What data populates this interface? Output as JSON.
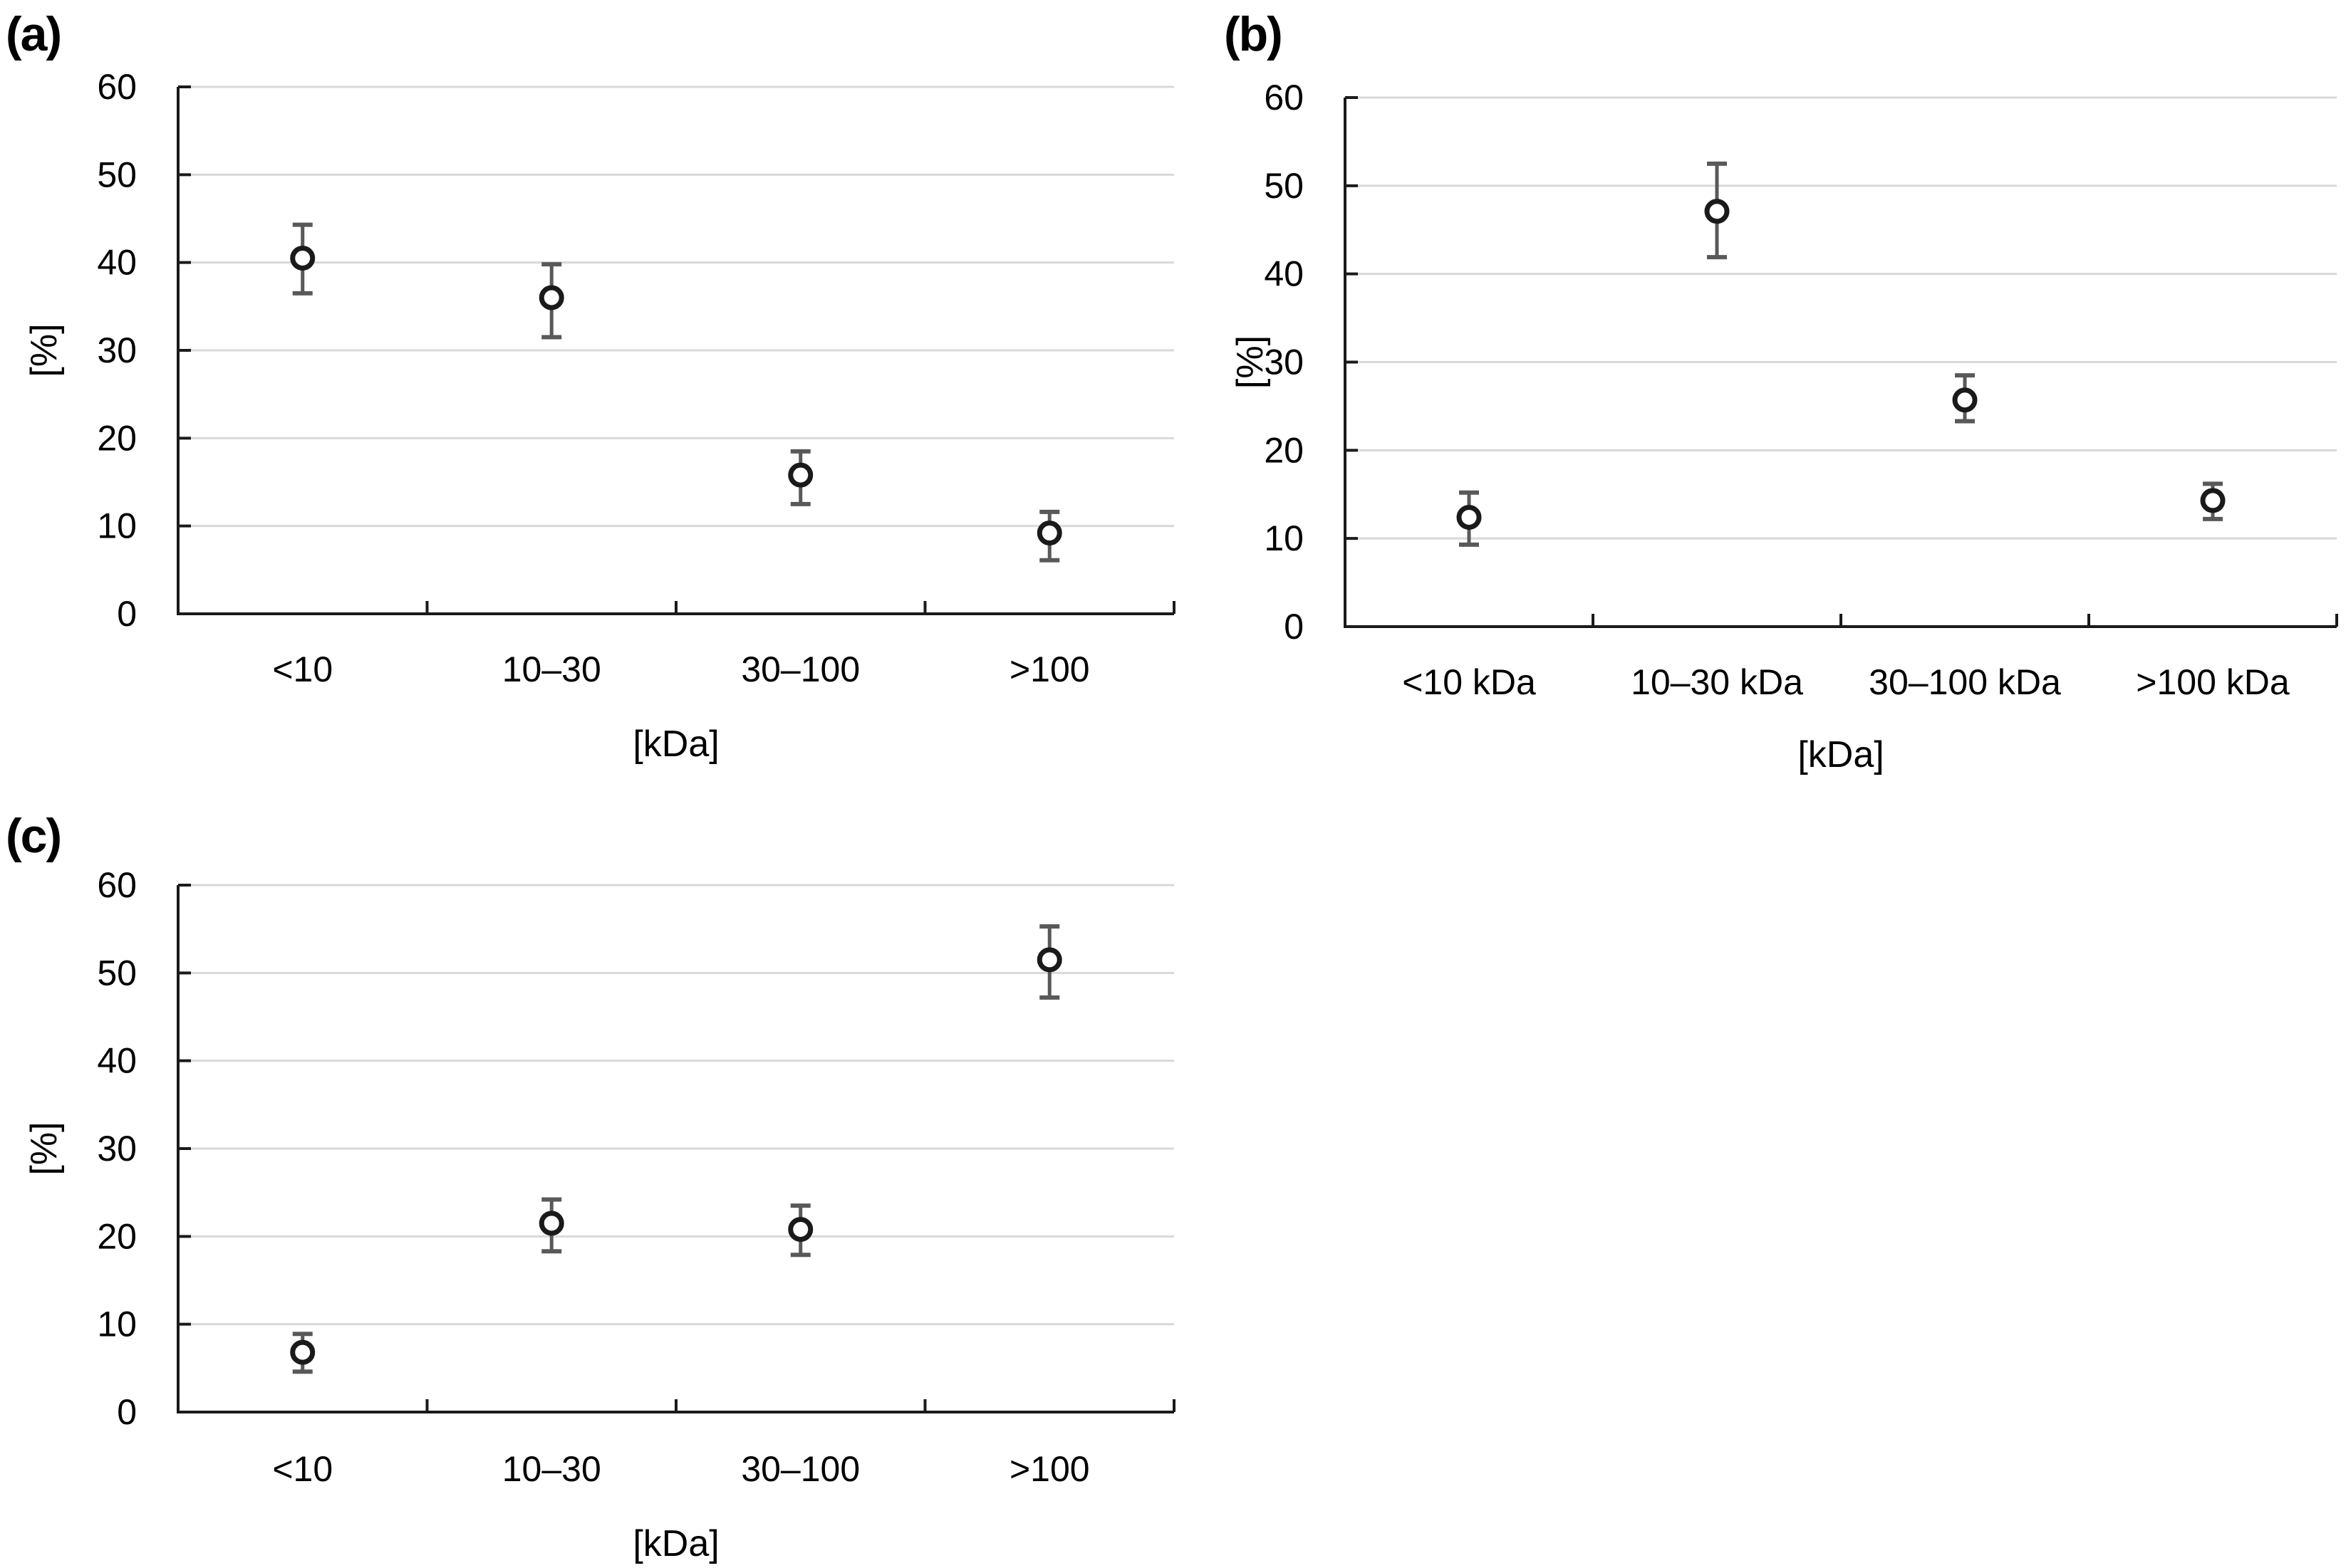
{
  "figure": {
    "background": "#ffffff",
    "panel_labels": [
      "(a)",
      "(b)",
      "(c)"
    ]
  },
  "colors": {
    "marker_stroke": "#1a1a1a",
    "marker_fill": "#ffffff",
    "error_bar": "#595959",
    "gridline": "#d9d9d9",
    "axis": "#1a1a1a",
    "text": "#000000"
  },
  "chart_data": [
    {
      "id": "a",
      "panel_label": "(a)",
      "type": "scatter",
      "marker": "open-circle",
      "categories": [
        "<10",
        "10–30",
        "30–100",
        ">100"
      ],
      "values": [
        40.5,
        36.0,
        15.8,
        9.2
      ],
      "error_up": [
        3.8,
        3.8,
        2.7,
        2.4
      ],
      "error_down": [
        4.0,
        4.5,
        3.3,
        3.1
      ],
      "xlabel": "[kDa]",
      "ylabel": "[%]",
      "ylim": [
        0,
        60
      ],
      "ytick_step": 10,
      "ytick_labels": [
        "0",
        "10",
        "20",
        "30",
        "40",
        "50",
        "60"
      ],
      "grid": true,
      "legend": "none"
    },
    {
      "id": "b",
      "panel_label": "(b)",
      "type": "scatter",
      "marker": "open-circle",
      "categories": [
        "<10 kDa",
        "10–30 kDa",
        "30–100 kDa",
        ">100 kDa"
      ],
      "values": [
        12.4,
        47.1,
        25.7,
        14.3
      ],
      "error_up": [
        2.8,
        5.4,
        2.8,
        1.9
      ],
      "error_down": [
        3.1,
        5.2,
        2.4,
        2.1
      ],
      "xlabel": "[kDa]",
      "ylabel": "[%]",
      "ylim": [
        0,
        60
      ],
      "ytick_step": 10,
      "ytick_labels": [
        "0",
        "10",
        "20",
        "30",
        "40",
        "50",
        "60"
      ],
      "grid": true,
      "legend": "none"
    },
    {
      "id": "c",
      "panel_label": "(c)",
      "type": "scatter",
      "marker": "open-circle",
      "categories": [
        "<10",
        "10–30",
        "30–100",
        ">100"
      ],
      "values": [
        6.8,
        21.5,
        20.8,
        51.5
      ],
      "error_up": [
        2.1,
        2.7,
        2.7,
        3.8
      ],
      "error_down": [
        2.2,
        3.2,
        2.9,
        4.3
      ],
      "xlabel": "[kDa]",
      "ylabel": "[%]",
      "ylim": [
        0,
        60
      ],
      "ytick_step": 10,
      "ytick_labels": [
        "0",
        "10",
        "20",
        "30",
        "40",
        "50",
        "60"
      ],
      "grid": true,
      "legend": "none"
    }
  ]
}
